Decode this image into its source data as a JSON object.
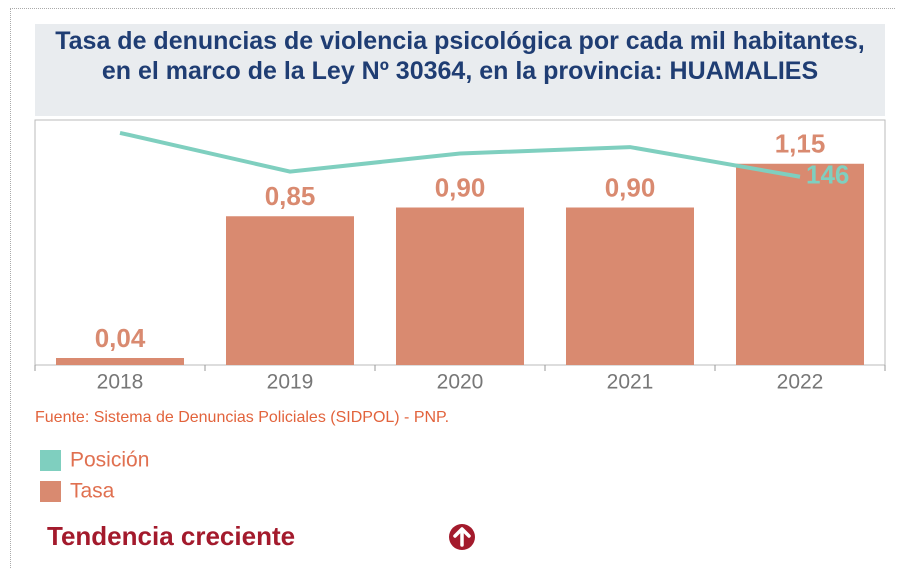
{
  "chart_data": {
    "type": "bar_line",
    "title": "Tasa de denuncias de violencia psicológica por cada mil habitantes, en el marco de la Ley Nº 30364, en la provincia: HUAMALIES",
    "categories": [
      "2018",
      "2019",
      "2020",
      "2021",
      "2022"
    ],
    "series": [
      {
        "name": "Posición",
        "type": "line",
        "axis": "y2",
        "color": "#7fcfbf",
        "values": [
          180,
          150,
          164,
          169,
          146
        ],
        "value_labels": [
          null,
          null,
          null,
          null,
          "146"
        ]
      },
      {
        "name": "Tasa",
        "type": "bar",
        "color": "#d98a70",
        "values": [
          0.04,
          0.85,
          0.9,
          0.9,
          1.15
        ],
        "value_labels": [
          "0,04",
          "0,85",
          "0,90",
          "0,90",
          "1,15"
        ]
      }
    ],
    "ylim": [
      0,
      1.4
    ],
    "y2lim": [
      0,
      190
    ],
    "source": "Fuente: Sistema de Denuncias Policiales (SIDPOL) - PNP.",
    "trend": "Tendencia creciente"
  }
}
